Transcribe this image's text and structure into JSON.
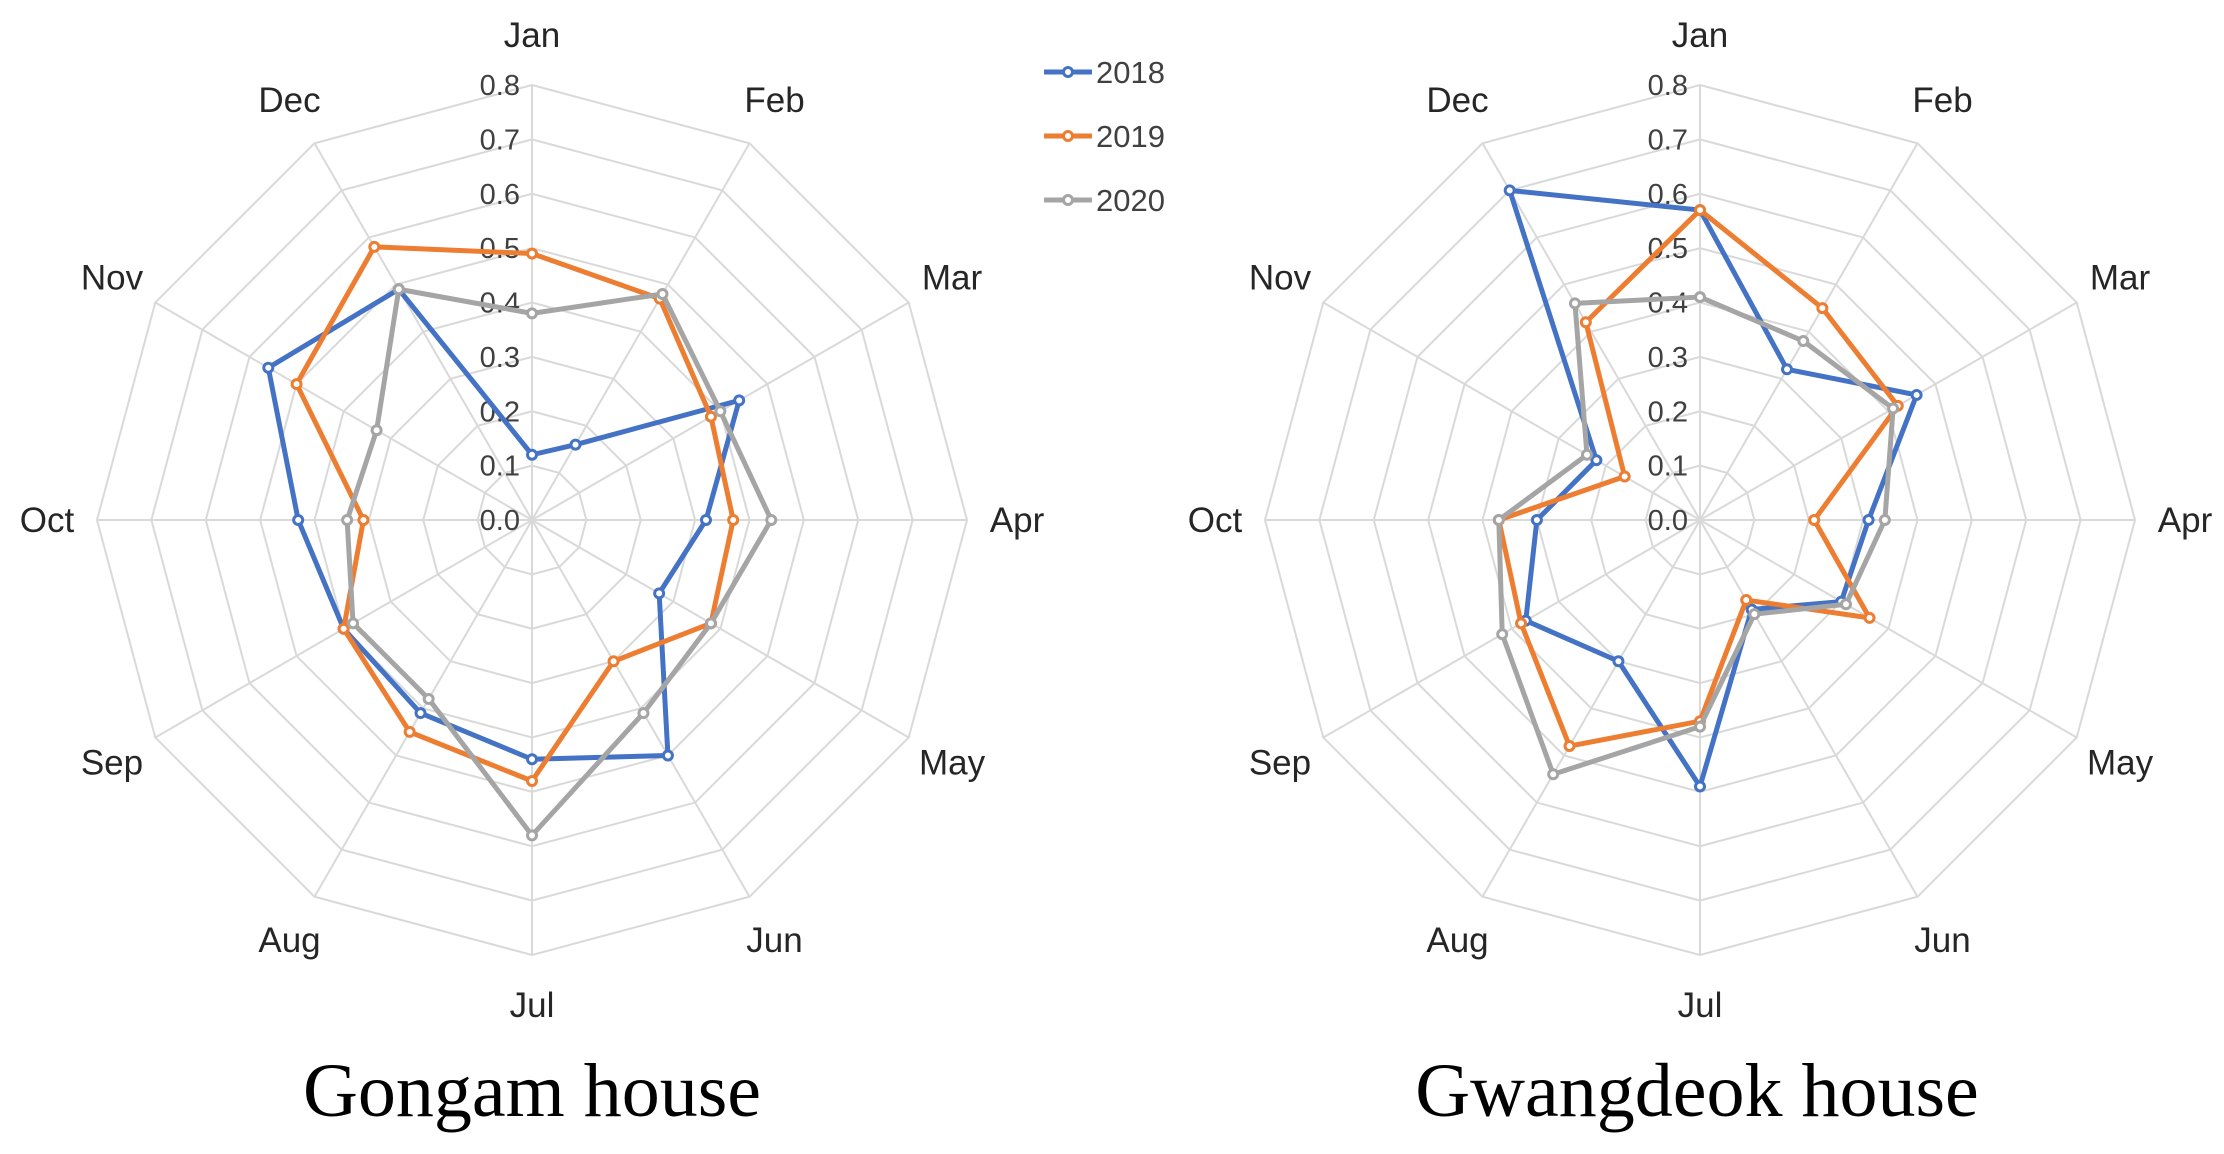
{
  "legend": [
    {
      "name": "2018",
      "color": "#4472c4"
    },
    {
      "name": "2019",
      "color": "#ed7d31"
    },
    {
      "name": "2020",
      "color": "#a5a5a5"
    }
  ],
  "chart_data": [
    {
      "type": "radar",
      "title": "Gongam house",
      "categories": [
        "Jan",
        "Feb",
        "Mar",
        "Apr",
        "May",
        "Jun",
        "Jul",
        "Aug",
        "Sep",
        "Oct",
        "Nov",
        "Dec"
      ],
      "ticks": [
        "0.0",
        "0.1",
        "0.2",
        "0.3",
        "0.4",
        "0.5",
        "0.6",
        "0.7",
        "0.8"
      ],
      "rlim": [
        0,
        0.8
      ],
      "series": [
        {
          "name": "2018",
          "color": "#4472c4",
          "values": [
            0.12,
            0.16,
            0.44,
            0.32,
            0.27,
            0.5,
            0.44,
            0.41,
            0.4,
            0.43,
            0.56,
            0.49
          ]
        },
        {
          "name": "2019",
          "color": "#ed7d31",
          "values": [
            0.49,
            0.47,
            0.38,
            0.37,
            0.38,
            0.3,
            0.48,
            0.45,
            0.4,
            0.31,
            0.5,
            0.58
          ]
        },
        {
          "name": "2020",
          "color": "#a5a5a5",
          "values": [
            0.38,
            0.48,
            0.4,
            0.44,
            0.38,
            0.41,
            0.58,
            0.38,
            0.38,
            0.34,
            0.33,
            0.49
          ]
        }
      ]
    },
    {
      "type": "radar",
      "title": "Gwangdeok house",
      "categories": [
        "Jan",
        "Feb",
        "Mar",
        "Apr",
        "May",
        "Jun",
        "Jul",
        "Aug",
        "Sep",
        "Oct",
        "Nov",
        "Dec"
      ],
      "ticks": [
        "0.0",
        "0.1",
        "0.2",
        "0.3",
        "0.4",
        "0.5",
        "0.6",
        "0.7",
        "0.8"
      ],
      "rlim": [
        0,
        0.8
      ],
      "series": [
        {
          "name": "2018",
          "color": "#4472c4",
          "values": [
            0.57,
            0.32,
            0.46,
            0.31,
            0.3,
            0.19,
            0.49,
            0.3,
            0.37,
            0.3,
            0.22,
            0.7
          ]
        },
        {
          "name": "2019",
          "color": "#ed7d31",
          "values": [
            0.57,
            0.45,
            0.42,
            0.21,
            0.36,
            0.17,
            0.37,
            0.48,
            0.38,
            0.37,
            0.16,
            0.42
          ]
        },
        {
          "name": "2020",
          "color": "#a5a5a5",
          "values": [
            0.41,
            0.38,
            0.41,
            0.34,
            0.31,
            0.2,
            0.38,
            0.54,
            0.42,
            0.37,
            0.24,
            0.46
          ]
        }
      ]
    }
  ]
}
